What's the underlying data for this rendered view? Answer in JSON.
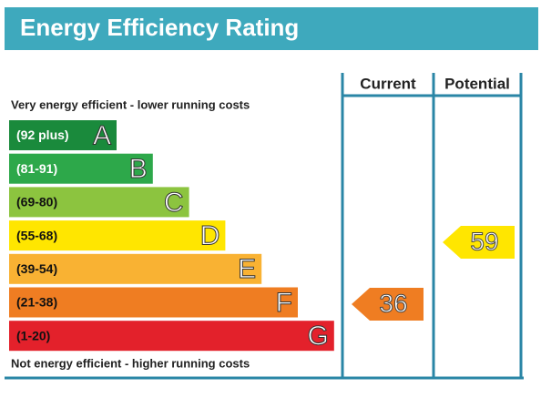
{
  "header": {
    "title": "Energy Efficiency Rating"
  },
  "columns": [
    "Current",
    "Potential"
  ],
  "top_note": "Very energy efficient - lower running costs",
  "bottom_note": "Not energy efficient - higher running costs",
  "bands": [
    {
      "range": "(92 plus)",
      "letter": "A"
    },
    {
      "range": "(81-91)",
      "letter": "B"
    },
    {
      "range": "(69-80)",
      "letter": "C"
    },
    {
      "range": "(55-68)",
      "letter": "D"
    },
    {
      "range": "(39-54)",
      "letter": "E"
    },
    {
      "range": "(21-38)",
      "letter": "F"
    },
    {
      "range": "(1-20)",
      "letter": "G"
    }
  ],
  "current": 36,
  "potential": 59
}
